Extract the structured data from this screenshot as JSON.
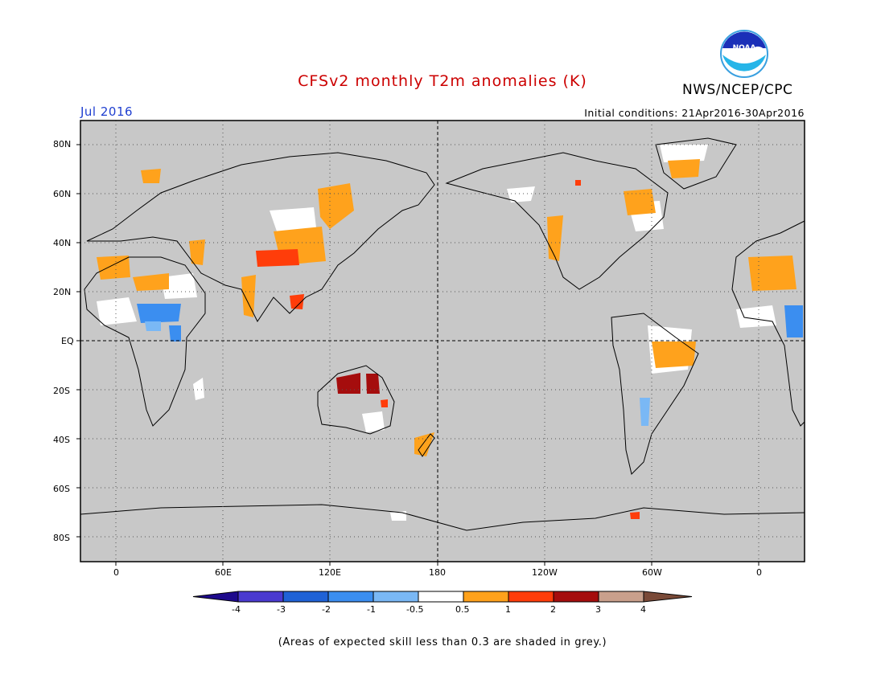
{
  "header": {
    "title": "CFSv2 monthly T2m anomalies (K)",
    "agency": "NWS/NCEP/CPC",
    "period": "Jul 2016",
    "initial_conditions": "Initial conditions: 21Apr2016-30Apr2016",
    "logo_text": "NOAA"
  },
  "map": {
    "lat_labels": [
      "80N",
      "60N",
      "40N",
      "20N",
      "EQ",
      "20S",
      "40S",
      "60S",
      "80S"
    ],
    "lon_labels": [
      "0",
      "60E",
      "120E",
      "180",
      "120W",
      "60W",
      "0"
    ],
    "background_color": "#c8c8c8"
  },
  "colorbar": {
    "tick_labels": [
      "-4",
      "-3",
      "-2",
      "-1",
      "-0.5",
      "0.5",
      "1",
      "2",
      "3",
      "4"
    ],
    "colors": [
      "#1e0a8c",
      "#4a3ad0",
      "#1f62d6",
      "#3b8ef0",
      "#7ab8f5",
      "#ffffff",
      "#ffa21c",
      "#ff3d0a",
      "#a50d0d",
      "#c9a08c",
      "#7a4a38"
    ]
  },
  "footnote": "(Areas of expected skill less than 0.3 are shaded in grey.)"
}
